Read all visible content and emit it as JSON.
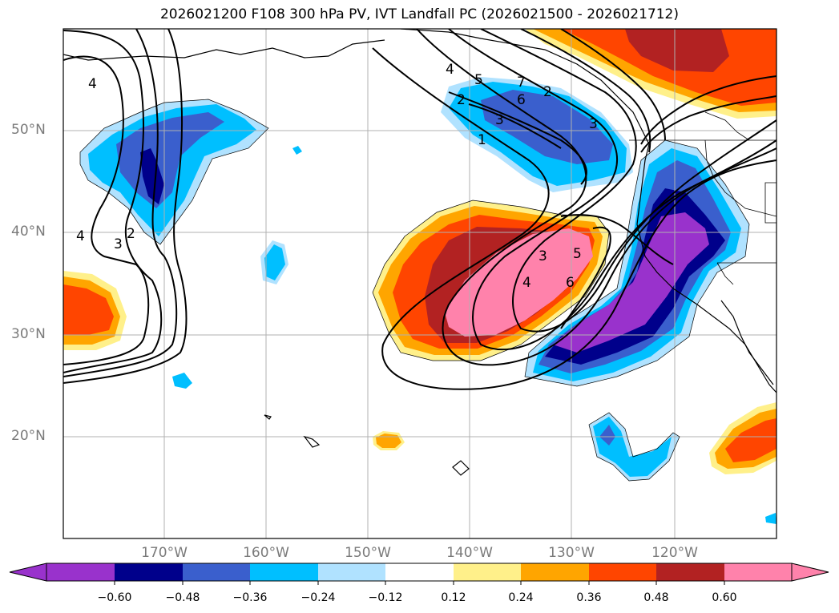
{
  "title": "2026021200 F108 300 hPa PV, IVT Landfall PC (2026021500 - 2026021712)",
  "lat_labels": [
    "50°N",
    "40°N",
    "30°N",
    "20°N"
  ],
  "lon_labels": [
    "170°W",
    "160°W",
    "150°W",
    "140°W",
    "130°W",
    "120°W"
  ],
  "colorbar": {
    "ticks": [
      "−0.60",
      "−0.48",
      "−0.36",
      "−0.24",
      "−0.12",
      "0.12",
      "0.24",
      "0.36",
      "0.48",
      "0.60"
    ],
    "colors": [
      "#9932cc",
      "#00008b",
      "#3a5fcd",
      "#00bfff",
      "#b0e2ff",
      "#ffffff",
      "#fff08a",
      "#ffa500",
      "#ff4500",
      "#b22222",
      "#ff82ab"
    ]
  },
  "contour_labels": [
    "4",
    "3",
    "2",
    "1",
    "4",
    "5",
    "7",
    "6",
    "3",
    "2",
    "3",
    "4",
    "5",
    "6",
    "4",
    "3",
    "2"
  ]
}
